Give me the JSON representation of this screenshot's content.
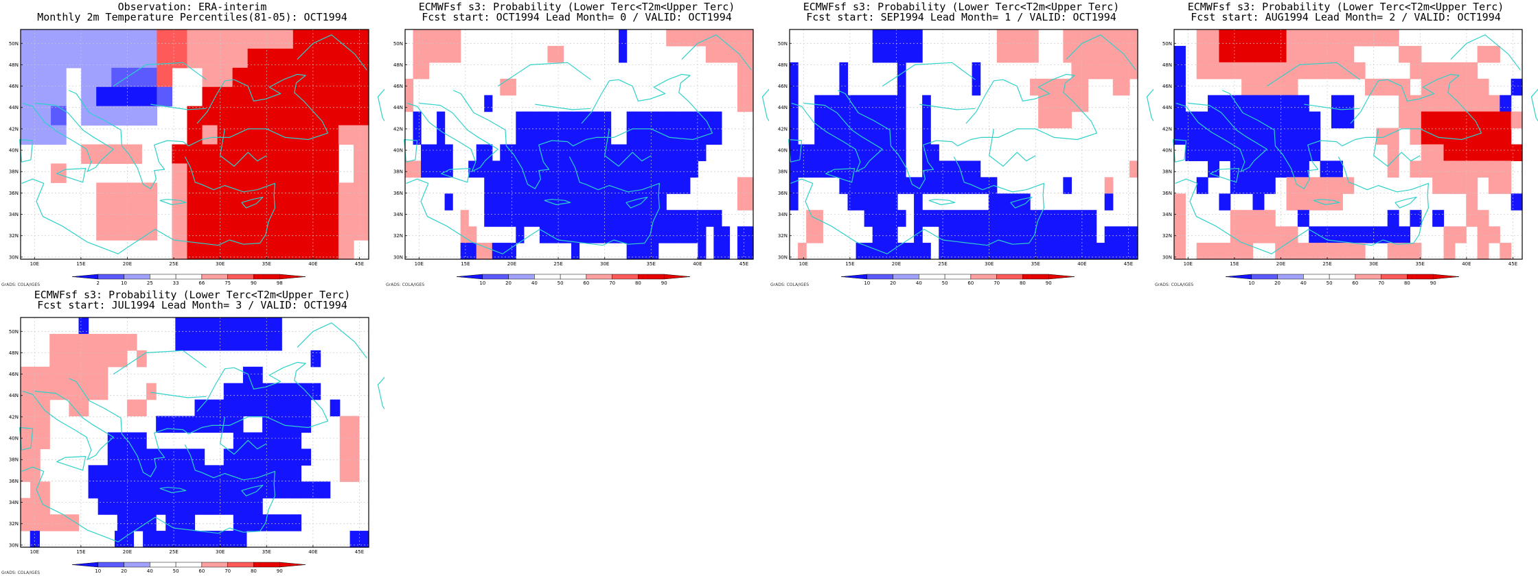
{
  "colors": {
    "cool": [
      "#1414ff",
      "#5a5aff",
      "#a0a0ff"
    ],
    "warm": [
      "#ffa0a0",
      "#ff5a5a",
      "#e60000"
    ],
    "coast": "#2ed1c9",
    "grid": "#c8c8c8"
  },
  "axes": {
    "lon_labels": [
      "10E",
      "15E",
      "20E",
      "25E",
      "30E",
      "35E",
      "40E",
      "45E"
    ],
    "lat_labels": [
      "30N",
      "32N",
      "34N",
      "36N",
      "38N",
      "40N",
      "42N",
      "44N",
      "46N",
      "48N",
      "50N"
    ]
  },
  "credit": "GrADS: COLA/IGES",
  "panels": [
    {
      "title1": "Observation: ERA-interim",
      "title2": "Monthly 2m Temperature Percentiles(81-05): OCT1994",
      "colorbar": [
        "2",
        "10",
        "25",
        "33",
        "66",
        "75",
        "90",
        "98"
      ],
      "grid": [
        "cccccccccvvwwwwwwwrrrrr",
        "cccccccccvvwwwwrrrrrrrr",
        "ccc.ccbbbv..wwrrrrrrrrr",
        "ccc.caaaab..rrrrrrrrrrr",
        "ccb.ccccc..rrrrrrrrrrrr",
        "ccc........rwrrrrrrrrww",
        "....wwww..rrrrrrrrrrr.w",
        "..w.......wrrrrrrrrrr.w",
        ".....wwww.wrrrrrrrrrrww",
        ".....wwww.wrrrrrrrrrrww",
        ".....wwww.wrrrrrrrrrrww",
        "..........wrrrrrrrrrrw."
      ]
    },
    {
      "title1": "ECMWFsf s3: Probability (Lower Terc<T2m<Upper Terc)",
      "title2": "Fcst start: OCT1994  Lead Month= 0 / VALID: OCT1994",
      "colorbar": [
        "10",
        "20",
        "40",
        "50",
        "60",
        "70",
        "80",
        "90"
      ],
      "grid": [
        ".wwwwww....................a.....wwwwwwwwwww",
        ".wwwwww...........ww.......a..........wwwwww",
        ".ww.......................................ww",
        "w...........ww............................ww",
        "w.........a...............................ww",
        ".a..a.........aaaaaaaaaaaa..aaaaaaaaaaaa....",
        ".a..a.........aaaaaaaaaaaa..aaaaaaaaaaaa....",
        "..aaaa...aa.aaaaaaaaaaaaaaaaaaaaaaaaaa......",
        "wwaaaa..aaaaaaaaaaaaaaaaaaaaaaaaaaaaa.......",
        "..........aaaaaaaaaaaaaaaaaaaaaaaaaa......ww",
        ".....a....aaaaaaaaaaaaaaaaaaaaaaa.........ww",
        ".......w..aaaaaaaaaaaaaaaaaaaaaaaaaaaaaa....",
        ".......ww.....a..aaaaaaaaaaaaaaaaaaaaa.aa.aa",
        ".......aawwaaa.......a......aaaa.....a.aa.aa"
      ]
    },
    {
      "title1": "ECMWFsf s3: Probability (Lower Terc<T2m<Upper Terc)",
      "title2": "Fcst start: SEP1994  Lead Month= 1 / VALID: OCT1994",
      "colorbar": [
        "10",
        "20",
        "40",
        "50",
        "60",
        "70",
        "80",
        "90"
      ],
      "grid": [
        "..........aaaaaa.........wwwww...wwwwwwwww",
        "..........aaaaaa.........wwwww...wwwwwwwww",
        "a.....a......a........a...........wwwwwwww",
        "a.....a......a........a......wwwwwww...ww.",
        "a..aaaaaaaaaaa..a.............wwwwww......",
        "a..aaaaaaaaaaa..a.............wwww........",
        "a..aaaaaaaaaaa..a.........................",
        "aaaaaaaaaaaaaa..aa........................",
        "aaaaaaaaaaaaaa..aaaaaaa..................w",
        "a.....aaaaaaaaaaaaaaaaaaa........a....w...",
        "a......aaaaaa..a........aaaaa.........a...",
        "..ww.....aaaaa.aaaaaaaaaaaaaaaaaaaaaa.....",
        "..ww......aaa..a..aaaaaaaaaaaaaaaaaaa.aaaa",
        ".w......aaaaaaaaa.aaaaaaaaaaaaaaaaaaaaaaaa"
      ]
    },
    {
      "title1": "ECMWFsf s3: Probability (Lower Terc<T2m<Upper Terc)",
      "title2": "Fcst start: AUG1994  Lead Month= 2 / VALID: OCT1994",
      "colorbar": [
        "10",
        "20",
        "40",
        "50",
        "60",
        "70",
        "80",
        "90"
      ],
      "grid": [
        "..wwrrrrrrwwwwwwwwww...........",
        "a.wwrrrrrrwwwwww....ww.....ww..",
        "a.wwwwwwwwwwwwwww....wwwwww....",
        "a.....wwwww......wwww.wwwwww..a",
        "a..aaaaaaaaa..aa....wwwwwwwwwa.",
        "aaaaaaaaaaaaa.aa....wwrrrrrrrrw",
        "aaaaaaaaaaaaa.....ww.wrrrrrrrr.",
        ".aaaaaaaaaaaa......w..wwrrrrrrr",
        "...a.aaaaaaa.aa....w.wwwwwwwww.",
        "..a..aaaa.wwwwww.......wwww.ww.",
        "w...a..a..wwwww...........w...a",
        "w....wwww..a.......a.a.a..ww...",
        "w....wwwwww.aaaaaaaaa...ww.ww..",
        "w.wwwww..wwwwwwww..www..w..w.w."
      ]
    },
    {
      "title1": "ECMWFsf s3: Probability (Lower Terc<T2m<Upper Terc)",
      "title2": "Fcst start: JUL1994  Lead Month= 3 / VALID: OCT1994",
      "colorbar": [
        "10",
        "20",
        "40",
        "50",
        "60",
        "70",
        "80",
        "90"
      ],
      "grid": [
        "......a.........aaaaaaaaaaa.........",
        "...wwwwwwwww....aaaaaaaaaaa.........",
        "...wwwwwwww.w.................a.....",
        "wwwwwwwww..............aa...........",
        "wwwwwwwww....w.......aaaaaaaaaa.....",
        "www..ww....ww.....aaaaaaaaaaaa..a...",
        "www...........aaaaaaaaa..aaaaa...ww.",
        "www......aaaa.........aaaaaaa....ww.",
        "ww.......aaaaaaaaaa..aaaaaaaaa...ww.",
        "ww.....aaaaaaaaaaaaaaaaaaaaaa....ww.",
        ".ww....aaaaaaaaaaaaaaaaaaaaaaaaa....",
        "www.....aaaaaaaaaaaaaaaaa...........",
        "wwwwww....aaaa.aaa....aaaaaaa.......",
        ".a........aa.aaaaaaaaaaa...........aa"
      ]
    }
  ]
}
